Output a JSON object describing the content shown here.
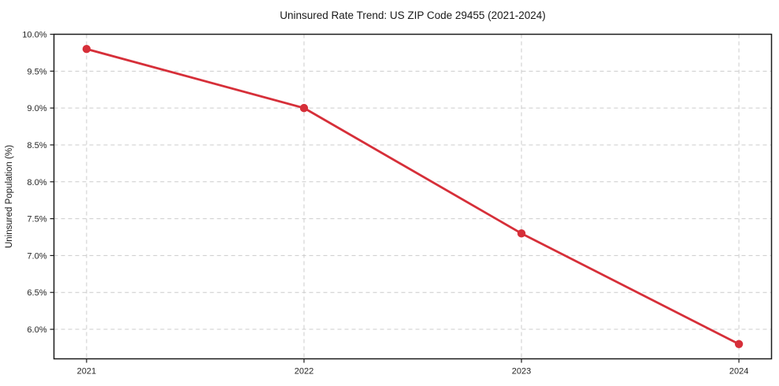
{
  "chart_data": {
    "type": "line",
    "title": "Uninsured Rate Trend: US ZIP Code 29455 (2021-2024)",
    "xlabel": "",
    "ylabel": "Uninsured Population (%)",
    "categories": [
      "2021",
      "2022",
      "2023",
      "2024"
    ],
    "x": [
      2021,
      2022,
      2023,
      2024
    ],
    "series": [
      {
        "values": [
          9.8,
          9.0,
          7.3,
          5.8
        ],
        "marker": "circle",
        "color": "#d62f39"
      }
    ],
    "y_ticks": [
      6.0,
      6.5,
      7.0,
      7.5,
      8.0,
      8.5,
      9.0,
      9.5,
      10.0
    ],
    "y_tick_labels": [
      "6.0%",
      "6.5%",
      "7.0%",
      "7.5%",
      "8.0%",
      "8.5%",
      "9.0%",
      "9.5%",
      "10.0%"
    ],
    "xlim": [
      2020.85,
      2024.15
    ],
    "ylim": [
      5.6,
      10.0
    ],
    "grid": true,
    "grid_line_style": "dashed",
    "legend_position": "none",
    "colors": {
      "line": "#d62f39",
      "grid": "#cccccc",
      "spine": "#1a1a1a",
      "text": "#1a1a1a",
      "background": "#ffffff"
    }
  }
}
